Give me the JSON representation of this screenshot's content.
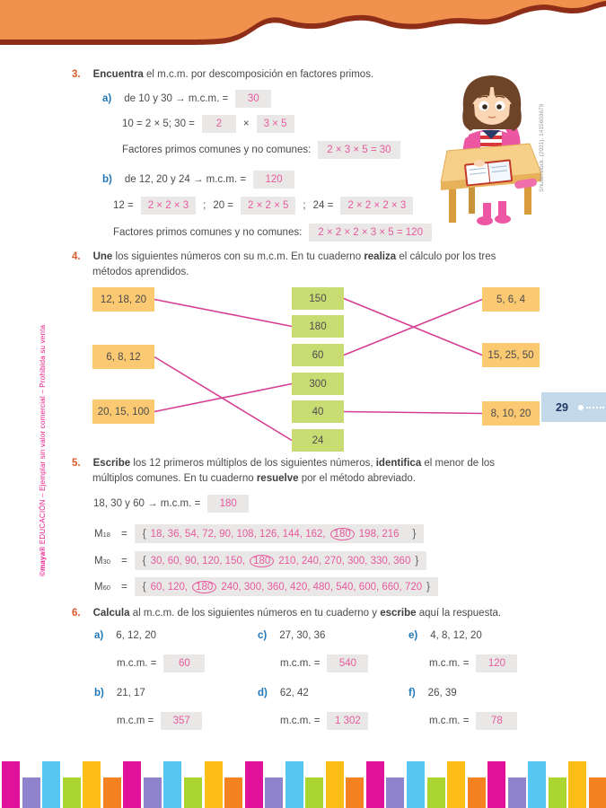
{
  "page": {
    "number": "29"
  },
  "colors": {
    "header_orange": "#F0924D",
    "header_brown": "#8E2E18",
    "accent_orange": "#DD5A28",
    "accent_blue": "#2077B8",
    "answer_pink": "#E75A9E",
    "chip_gray": "#E9E8E7",
    "yellow_box": "#FAC972",
    "green_box": "#C9DC74",
    "line_pink": "#D63E93",
    "tab_blue_bg": "#C3D9E9",
    "sidebar_pink": "#EC1E8C"
  },
  "sidebar": {
    "brand": "©maya®",
    "rest": " EDUCACIÓN – Ejemplar sin valor comercial – Prohibida su venta"
  },
  "photo_credit": "Shutterstock. (2021). 1415603679",
  "s3": {
    "number": "3.",
    "bold1": "Encuentra",
    "t1": " el m.c.m. por descomposición en factores primos.",
    "a": {
      "label": "a)",
      "line": "de 10 y 30 → m.c.m. =",
      "mcm": "30",
      "eq_prefix": "10 = 2 × 5; 30 =",
      "chip1": "2",
      "times": "×",
      "chip2": "3 × 5",
      "factores_label": "Factores primos comunes y no comunes:",
      "factores": "2 × 3 × 5 = 30"
    },
    "b": {
      "label": "b)",
      "line": "de 12, 20 y 24 → m.c.m. =",
      "mcm": "120",
      "eq1_label": "12 =",
      "eq1": "2 × 2 × 3",
      "sep1": ";",
      "eq2_label": "20 =",
      "eq2": "2 × 2 × 5",
      "sep2": ";",
      "eq3_label": "24 =",
      "eq3": "2 × 2 × 2 × 3",
      "factores_label": "Factores primos comunes y no comunes:",
      "factores": "2 × 2 × 2 × 3 × 5 = 120"
    }
  },
  "s4": {
    "number": "4.",
    "bold1": "Une",
    "t1": " los siguientes números con su m.c.m. En tu cuaderno ",
    "bold2": "realiza",
    "t2": " el cálculo por los tres",
    "line2": "métodos aprendidos.",
    "match": {
      "left": [
        "12, 18, 20",
        "6, 8, 12",
        "20, 15, 100"
      ],
      "middle": [
        "150",
        "180",
        "60",
        "300",
        "40",
        "24"
      ],
      "right": [
        "5, 6, 4",
        "15, 25, 50",
        "8, 10, 20"
      ],
      "connections": [
        [
          "left-0",
          "mid-1"
        ],
        [
          "left-1",
          "mid-5"
        ],
        [
          "left-2",
          "mid-3"
        ],
        [
          "mid-0",
          "right-1"
        ],
        [
          "mid-2",
          "right-0"
        ],
        [
          "mid-4",
          "right-2"
        ]
      ]
    }
  },
  "s5": {
    "number": "5.",
    "bold1": "Escribe",
    "t1": " los 12 primeros múltiplos de los siguientes números, ",
    "bold2": "identifica",
    "t2": " el menor de los",
    "line2a": "múltiplos comunes. En tu cuaderno ",
    "bold3": "resuelve",
    "t3": " por el método abreviado.",
    "intro": "18, 30 y 60 → m.c.m. =",
    "intro_answer": "180",
    "rows": [
      {
        "base": "M",
        "sub": "18",
        "eq": "=",
        "open": "{",
        "before": "18, 36, 54, 72, 90, 108, 126, 144, 162,",
        "circled": "180",
        "after": "198, 216",
        "close": "}"
      },
      {
        "base": "M",
        "sub": "30",
        "eq": "=",
        "open": "{",
        "before": "30, 60, 90, 120, 150,",
        "circled": "180",
        "after": "210, 240, 270, 300, 330, 360",
        "close": "}"
      },
      {
        "base": "M",
        "sub": "60",
        "eq": "=",
        "open": "{",
        "before": "60, 120,",
        "circled": "180",
        "after": "240, 300, 360, 420, 480, 540, 600, 660, 720",
        "close": "}"
      }
    ]
  },
  "s6": {
    "number": "6.",
    "bold1": "Calcula",
    "t1": " al m.c.m. de los siguientes números en tu cuaderno y ",
    "bold2": "escribe",
    "t2": " aquí la respuesta.",
    "items": [
      {
        "label": "a)",
        "numbers": "6, 12, 20",
        "mcm": "m.c.m. =",
        "answer": "60"
      },
      {
        "label": "b)",
        "numbers": "21, 17",
        "mcm": "m.c.m =",
        "answer": "357"
      },
      {
        "label": "c)",
        "numbers": "27, 30, 36",
        "mcm": "m.c.m. =",
        "answer": "540"
      },
      {
        "label": "d)",
        "numbers": "62, 42",
        "mcm": "m.c.m. =",
        "answer": "1 302"
      },
      {
        "label": "e)",
        "numbers": "4, 8, 12, 20",
        "mcm": "m.c.m. =",
        "answer": "120"
      },
      {
        "label": "f)",
        "numbers": "26, 39",
        "mcm": "m.c.m. =",
        "answer": "78"
      }
    ]
  },
  "footer": {
    "bar_colors": [
      "#E0119A",
      "#8F83CE",
      "#56C7F2",
      "#ABD530",
      "#FDBF17",
      "#F58220"
    ],
    "bar_count": 30
  }
}
